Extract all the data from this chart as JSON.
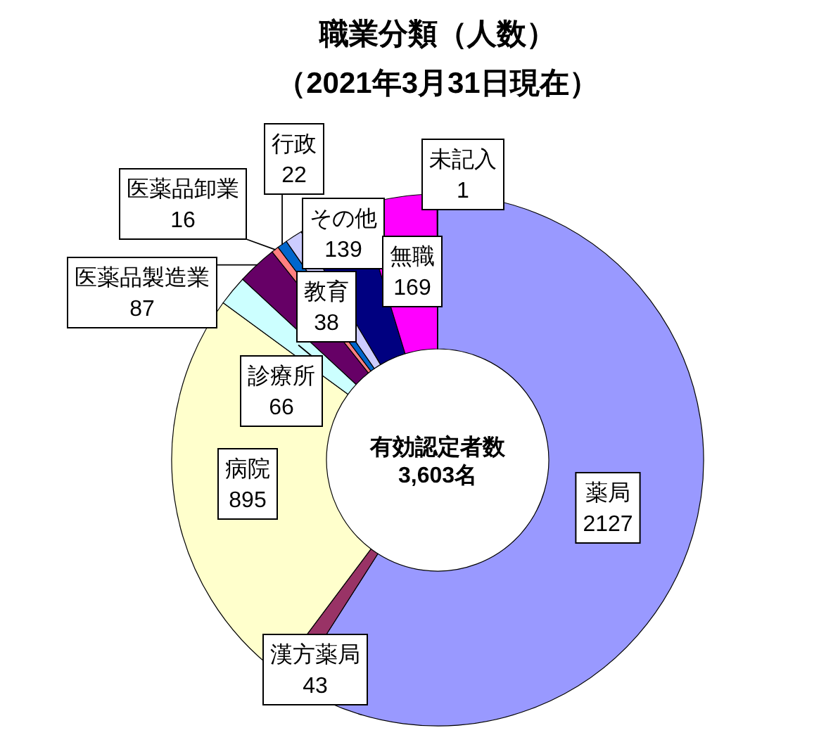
{
  "chart_data": {
    "type": "donut",
    "title": "職業分類（人数）",
    "subtitle": "（2021年3月31日現在）",
    "categories": [
      "薬局",
      "漢方薬局",
      "病院",
      "診療所",
      "医薬品製造業",
      "医薬品卸業",
      "行政",
      "教育",
      "その他",
      "無職",
      "未記入"
    ],
    "values": [
      2127,
      43,
      895,
      66,
      87,
      16,
      22,
      38,
      139,
      169,
      1
    ],
    "colors": [
      "#9999ff",
      "#993366",
      "#ffffcc",
      "#ccffff",
      "#660066",
      "#ff8080",
      "#0066cc",
      "#ccccff",
      "#000080",
      "#ff00ff",
      "#ffff00"
    ],
    "data_labels": true,
    "annotations": [
      "有効認定者数",
      "3,603名"
    ]
  }
}
